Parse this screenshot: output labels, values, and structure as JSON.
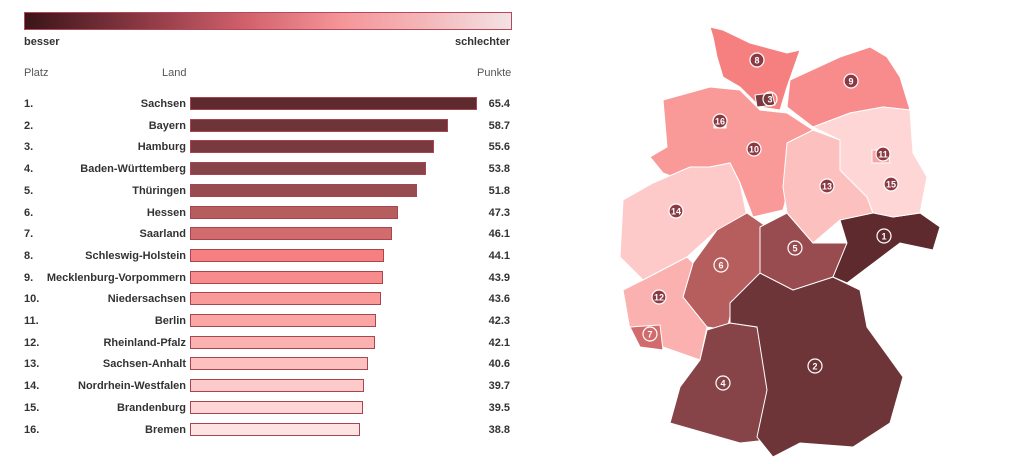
{
  "chart_data": {
    "type": "bar",
    "orientation": "horizontal",
    "legend": {
      "left_label": "besser",
      "right_label": "schlechter"
    },
    "headers": {
      "rank": "Platz",
      "state": "Land",
      "value": "Punkte"
    },
    "xlim": [
      0,
      65.4
    ],
    "rows": [
      {
        "rank": "1.",
        "num": "1",
        "name": "Sachsen",
        "value": 65.4,
        "display": "65.4",
        "color": "#5e2a2e"
      },
      {
        "rank": "2.",
        "num": "2",
        "name": "Bayern",
        "value": 58.7,
        "display": "58.7",
        "color": "#6d3538"
      },
      {
        "rank": "3.",
        "num": "3",
        "name": "Hamburg",
        "value": 55.6,
        "display": "55.6",
        "color": "#783a3e"
      },
      {
        "rank": "4.",
        "num": "4",
        "name": "Baden-Württemberg",
        "value": 53.8,
        "display": "53.8",
        "color": "#874448"
      },
      {
        "rank": "5.",
        "num": "5",
        "name": "Thüringen",
        "value": 51.8,
        "display": "51.8",
        "color": "#994c4f"
      },
      {
        "rank": "6.",
        "num": "6",
        "name": "Hessen",
        "value": 47.3,
        "display": "47.3",
        "color": "#b65d5e"
      },
      {
        "rank": "7.",
        "num": "7",
        "name": "Saarland",
        "value": 46.1,
        "display": "46.1",
        "color": "#d26b6c"
      },
      {
        "rank": "8.",
        "num": "8",
        "name": "Schleswig-Holstein",
        "value": 44.1,
        "display": "44.1",
        "color": "#f67f80"
      },
      {
        "rank": "9.",
        "num": "9",
        "name": "Mecklenburg-Vorpommern",
        "value": 43.9,
        "display": "43.9",
        "color": "#f88c8c"
      },
      {
        "rank": "10.",
        "num": "10",
        "name": "Niedersachsen",
        "value": 43.6,
        "display": "43.6",
        "color": "#f99a98"
      },
      {
        "rank": "11.",
        "num": "11",
        "name": "Berlin",
        "value": 42.3,
        "display": "42.3",
        "color": "#faa6a5"
      },
      {
        "rank": "12.",
        "num": "12",
        "name": "Rheinland-Pfalz",
        "value": 42.1,
        "display": "42.1",
        "color": "#fbb1b0"
      },
      {
        "rank": "13.",
        "num": "13",
        "name": "Sachsen-Anhalt",
        "value": 40.6,
        "display": "40.6",
        "color": "#fcc0bf"
      },
      {
        "rank": "14.",
        "num": "14",
        "name": "Nordrhein-Westfalen",
        "value": 39.7,
        "display": "39.7",
        "color": "#fdcac9"
      },
      {
        "rank": "15.",
        "num": "15",
        "name": "Brandenburg",
        "value": 39.5,
        "display": "39.5",
        "color": "#fdd6d5"
      },
      {
        "rank": "16.",
        "num": "16",
        "name": "Bremen",
        "value": 38.8,
        "display": "38.8",
        "color": "#fde3e2"
      }
    ]
  }
}
